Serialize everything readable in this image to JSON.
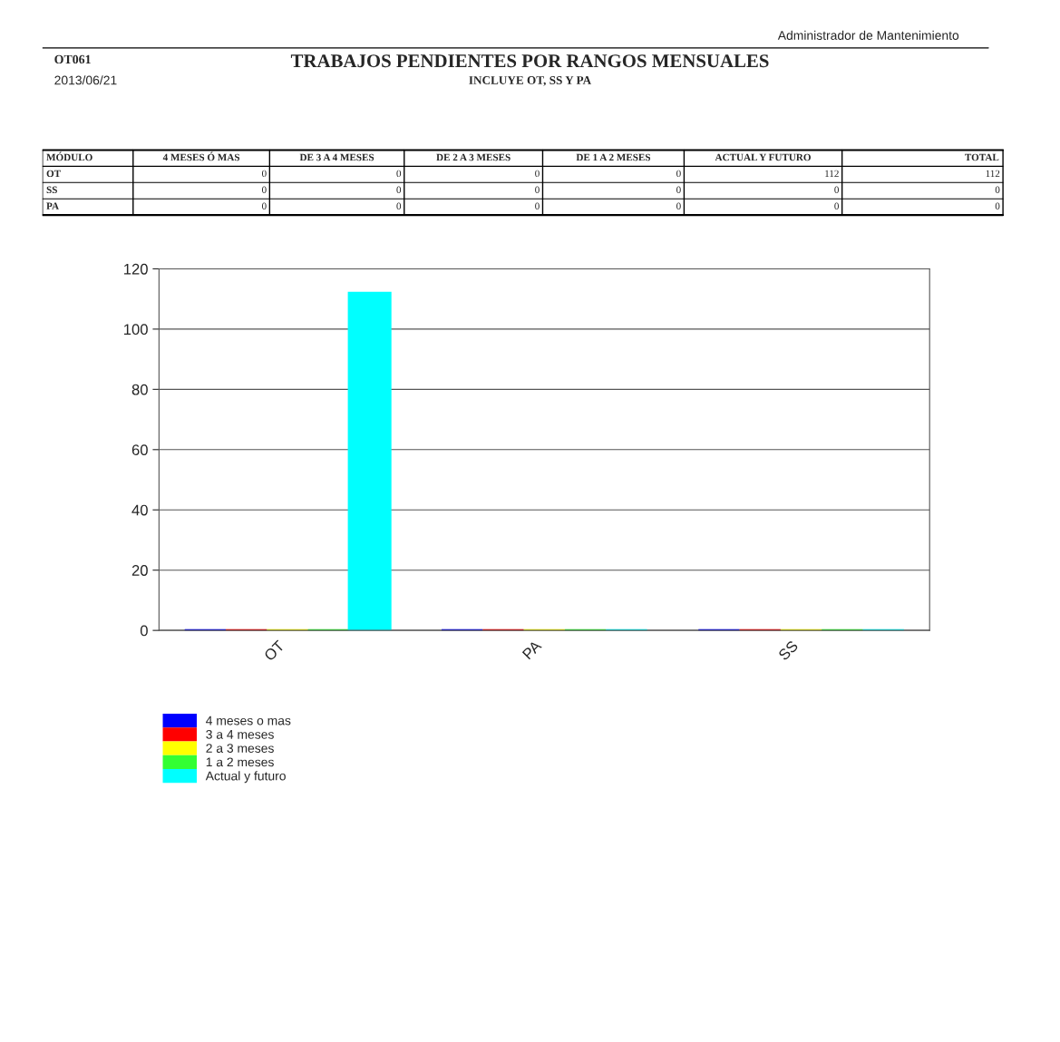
{
  "chart_data": [
    {
      "type": "other",
      "title": "TRABAJOS PENDIENTES POR RANGOS MENSUALES",
      "subtitle": "INCLUYE OT, SS Y PA",
      "annotations": [
        "OT061",
        "2013/06/21",
        "Administrador de Mantenimiento",
        "0",
        "0",
        "0",
        "0",
        "112",
        "112",
        "0",
        "0",
        "0",
        "0",
        "0",
        "0",
        "0",
        "0",
        "0",
        "0",
        "0",
        "0"
      ],
      "categories": [
        "MÓDULO",
        "4 MESES Ó MAS",
        "DE 3 A 4 MESES",
        "DE 2 A 3 MESES",
        "DE 1 A 2 MESES",
        "ACTUAL Y FUTURO",
        "TOTAL"
      ],
      "y_categories": [
        "OT",
        "SS",
        "PA"
      ]
    },
    {
      "type": "bar",
      "categories": [
        "OT",
        "PA",
        "SS"
      ],
      "series": [
        {
          "name": "4 meses o mas",
          "color": "#0000ff",
          "values": [
            0,
            0,
            0
          ]
        },
        {
          "name": "3 a 4 meses",
          "color": "#ff0000",
          "values": [
            0,
            0,
            0
          ]
        },
        {
          "name": "2 a 3 meses",
          "color": "#ffff00",
          "values": [
            0,
            0,
            0
          ]
        },
        {
          "name": "1 a 2 meses",
          "color": "#33ff33",
          "values": [
            0,
            0,
            0
          ]
        },
        {
          "name": "Actual y futuro",
          "color": "#00ffff",
          "values": [
            112,
            0,
            0
          ]
        }
      ],
      "ylim": [
        0,
        120
      ],
      "yticks": [
        0,
        20,
        40,
        60,
        80,
        100,
        120
      ],
      "grid": "y",
      "legend": "bottom left"
    }
  ]
}
